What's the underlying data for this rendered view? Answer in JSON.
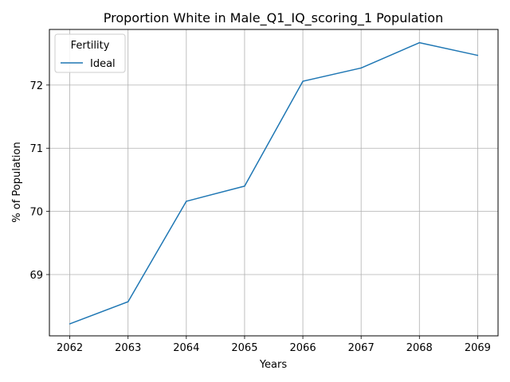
{
  "chart_data": {
    "type": "line",
    "title": "Proportion White in Male_Q1_IQ_scoring_1 Population",
    "xlabel": "Years",
    "ylabel": "% of Population",
    "x": [
      2062,
      2063,
      2064,
      2065,
      2066,
      2067,
      2068,
      2069
    ],
    "xticks": [
      "2062",
      "2063",
      "2064",
      "2065",
      "2066",
      "2067",
      "2068",
      "2069"
    ],
    "yticks": [
      "69",
      "70",
      "71",
      "72"
    ],
    "ytick_values": [
      69,
      70,
      71,
      72
    ],
    "xlim": [
      2061.65,
      2069.35
    ],
    "ylim": [
      68.03,
      72.88
    ],
    "grid": true,
    "legend": {
      "title": "Fertility",
      "placement": "top-left"
    },
    "series": [
      {
        "name": "Ideal",
        "color": "#1f77b4",
        "values": [
          68.22,
          68.57,
          70.16,
          70.4,
          72.06,
          72.27,
          72.67,
          72.47
        ]
      }
    ]
  }
}
